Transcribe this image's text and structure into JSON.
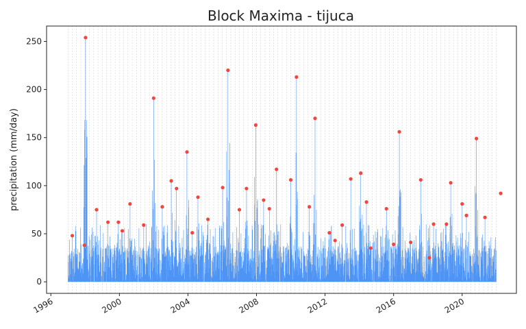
{
  "chart_data": {
    "type": "line",
    "title": "Block Maxima - tijuca",
    "xlabel": "",
    "ylabel": "precipitation (mm/day)",
    "xlim": [
      "1995-10-01",
      "2023-03-01"
    ],
    "ylim": [
      -12,
      266
    ],
    "x_ticks": [
      "1996",
      "2000",
      "2004",
      "2008",
      "2012",
      "2016",
      "2020"
    ],
    "y_ticks": [
      0,
      50,
      100,
      150,
      200,
      250
    ],
    "grid": "vertical dashed lines at each block (quarter)",
    "series": [
      {
        "kind": "daily precipitation line",
        "color": "#4e94f5",
        "start": "1997-01-01",
        "end": "2022-01-01"
      },
      {
        "kind": "block maxima points",
        "color": "#f2453d",
        "points": [
          [
            "1997-04-01",
            48
          ],
          [
            "1997-12-15",
            38
          ],
          [
            "1998-01-10",
            254
          ],
          [
            "1998-09-01",
            75
          ],
          [
            "1999-05-01",
            62
          ],
          [
            "1999-12-10",
            62
          ],
          [
            "2000-03-01",
            53
          ],
          [
            "2000-08-15",
            81
          ],
          [
            "2001-06-01",
            59
          ],
          [
            "2002-01-01",
            191
          ],
          [
            "2002-07-01",
            78
          ],
          [
            "2003-01-10",
            105
          ],
          [
            "2003-05-01",
            97
          ],
          [
            "2003-12-10",
            135
          ],
          [
            "2004-04-01",
            51
          ],
          [
            "2004-08-01",
            88
          ],
          [
            "2005-03-01",
            65
          ],
          [
            "2006-01-10",
            98
          ],
          [
            "2006-05-01",
            220
          ],
          [
            "2007-01-01",
            75
          ],
          [
            "2007-06-01",
            97
          ],
          [
            "2007-12-15",
            163
          ],
          [
            "2008-06-01",
            85
          ],
          [
            "2008-10-01",
            76
          ],
          [
            "2009-03-01",
            117
          ],
          [
            "2010-01-01",
            106
          ],
          [
            "2010-05-01",
            213
          ],
          [
            "2011-02-01",
            78
          ],
          [
            "2011-06-01",
            170
          ],
          [
            "2012-04-01",
            51
          ],
          [
            "2012-08-01",
            43
          ],
          [
            "2013-01-01",
            59
          ],
          [
            "2013-07-01",
            107
          ],
          [
            "2014-02-01",
            113
          ],
          [
            "2014-06-01",
            83
          ],
          [
            "2014-09-01",
            35
          ],
          [
            "2015-08-01",
            76
          ],
          [
            "2016-01-01",
            39
          ],
          [
            "2016-05-01",
            156
          ],
          [
            "2017-01-01",
            41
          ],
          [
            "2017-08-01",
            106
          ],
          [
            "2018-02-01",
            25
          ],
          [
            "2018-05-01",
            60
          ],
          [
            "2019-02-01",
            60
          ],
          [
            "2019-05-01",
            103
          ],
          [
            "2020-01-01",
            81
          ],
          [
            "2020-04-01",
            69
          ],
          [
            "2020-11-01",
            149
          ],
          [
            "2021-05-01",
            67
          ],
          [
            "2022-04-01",
            92
          ]
        ]
      }
    ]
  }
}
